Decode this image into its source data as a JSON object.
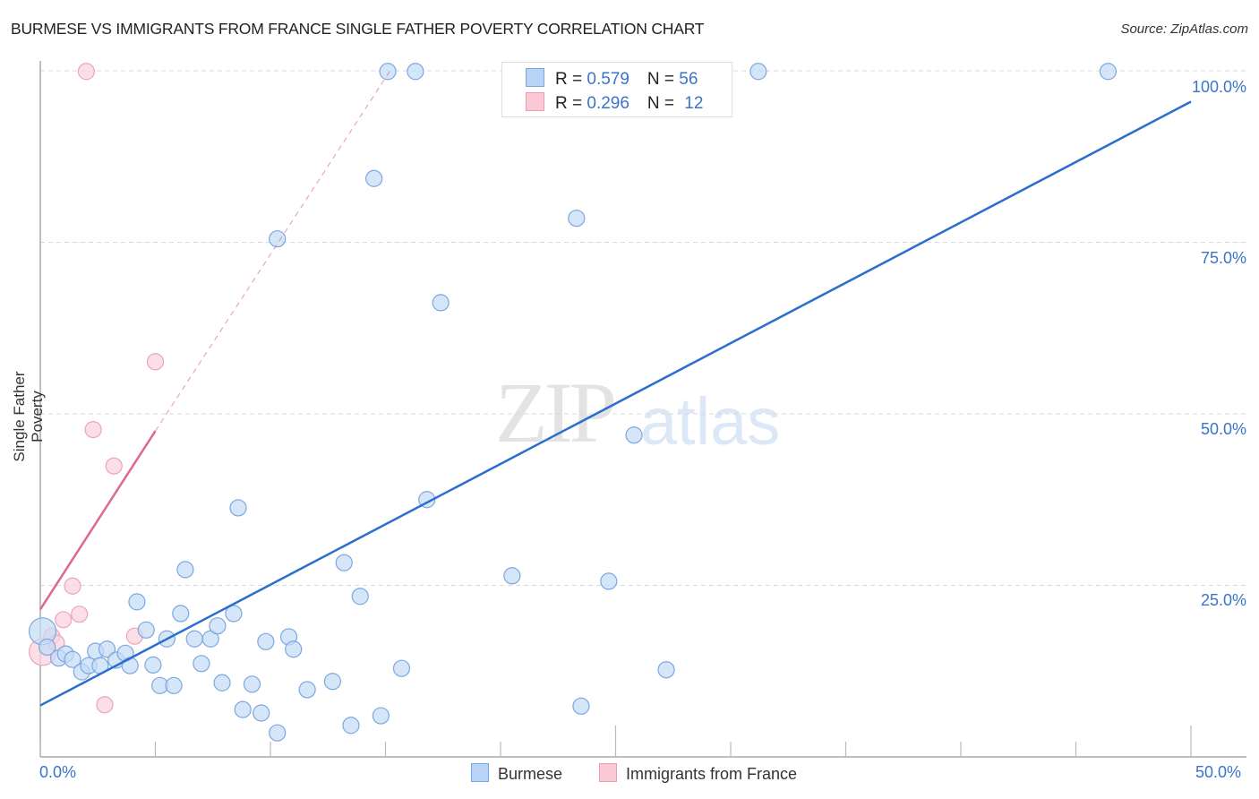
{
  "header": {
    "title": "BURMESE VS IMMIGRANTS FROM FRANCE SINGLE FATHER POVERTY CORRELATION CHART",
    "source": "Source: ZipAtlas.com"
  },
  "watermark": {
    "zip": "ZIP",
    "atlas": "atlas"
  },
  "legend": {
    "rows": [
      {
        "r_label": "R = ",
        "r_value": "0.579",
        "n_label": "N = ",
        "n_value": "56",
        "color": "#b8d3f5",
        "border": "#7aa6e0"
      },
      {
        "r_label": "R = ",
        "r_value": "0.296",
        "n_label": "N = ",
        "n_value": "12",
        "color": "#fbc8d6",
        "border": "#ee9cb4"
      }
    ]
  },
  "bottom_legend": {
    "items": [
      {
        "label": "Burmese",
        "color": "#b8d3f5",
        "border": "#7aa6e0"
      },
      {
        "label": "Immigrants from France",
        "color": "#fbc8d6",
        "border": "#ee9cb4"
      }
    ]
  },
  "axes": {
    "x_min_label": "0.0%",
    "x_max_label": "50.0%",
    "y_tick_labels": [
      "100.0%",
      "75.0%",
      "50.0%",
      "25.0%"
    ],
    "ylabel": "Single Father Poverty"
  },
  "colors": {
    "burmese_fill": "#c5dbf6",
    "burmese_stroke": "#7ba7e0",
    "burmese_line": "#2a6fd0",
    "france_fill": "#fbd3df",
    "france_stroke": "#eea3b9",
    "france_line": "#e0678c",
    "tick_label": "#3b74c9"
  },
  "chart_data": {
    "type": "scatter",
    "title": "BURMESE VS IMMIGRANTS FROM FRANCE SINGLE FATHER POVERTY CORRELATION CHART",
    "xlabel": "",
    "ylabel": "Single Father Poverty",
    "xlim": [
      0,
      50
    ],
    "ylim": [
      2.4,
      102
    ],
    "x_ticks": [
      "0.0%",
      "50.0%"
    ],
    "y_ticks": [
      "25.0%",
      "50.0%",
      "75.0%",
      "100.0%"
    ],
    "grid": "horizontal dashed",
    "legend_position": "top-center and bottom",
    "series": [
      {
        "name": "Burmese",
        "R": 0.579,
        "N": 56,
        "trendline": {
          "x": [
            0,
            50
          ],
          "y": [
            7.5,
            95.5
          ]
        },
        "points": [
          [
            0.1,
            18.3
          ],
          [
            0.8,
            14.4
          ],
          [
            1.1,
            15.0
          ],
          [
            1.4,
            14.2
          ],
          [
            1.8,
            12.4
          ],
          [
            2.1,
            13.3
          ],
          [
            2.4,
            15.4
          ],
          [
            2.6,
            13.3
          ],
          [
            2.9,
            15.7
          ],
          [
            3.3,
            14.1
          ],
          [
            3.7,
            15.1
          ],
          [
            3.9,
            13.3
          ],
          [
            4.2,
            22.6
          ],
          [
            4.6,
            18.5
          ],
          [
            4.9,
            13.4
          ],
          [
            5.2,
            10.4
          ],
          [
            5.5,
            17.2
          ],
          [
            5.8,
            10.4
          ],
          [
            6.1,
            20.9
          ],
          [
            6.3,
            27.3
          ],
          [
            6.7,
            17.2
          ],
          [
            7.0,
            13.6
          ],
          [
            7.4,
            17.2
          ],
          [
            7.7,
            19.1
          ],
          [
            7.9,
            10.8
          ],
          [
            8.4,
            20.9
          ],
          [
            8.6,
            36.3
          ],
          [
            8.8,
            6.9
          ],
          [
            9.2,
            10.6
          ],
          [
            9.6,
            6.4
          ],
          [
            9.8,
            16.8
          ],
          [
            10.3,
            3.5
          ],
          [
            10.3,
            75.5
          ],
          [
            10.8,
            17.5
          ],
          [
            11.0,
            15.7
          ],
          [
            11.6,
            9.8
          ],
          [
            12.7,
            11.0
          ],
          [
            13.2,
            28.3
          ],
          [
            13.5,
            4.6
          ],
          [
            13.9,
            23.4
          ],
          [
            14.5,
            84.3
          ],
          [
            14.8,
            6.0
          ],
          [
            15.1,
            99.9
          ],
          [
            15.7,
            12.9
          ],
          [
            16.3,
            99.9
          ],
          [
            16.8,
            37.5
          ],
          [
            17.4,
            66.2
          ],
          [
            20.5,
            26.4
          ],
          [
            23.3,
            78.5
          ],
          [
            23.5,
            7.4
          ],
          [
            24.7,
            25.6
          ],
          [
            25.8,
            46.9
          ],
          [
            27.2,
            12.7
          ],
          [
            31.2,
            99.9
          ],
          [
            46.4,
            99.9
          ],
          [
            0.3,
            16.0
          ]
        ]
      },
      {
        "name": "Immigrants from France",
        "R": 0.296,
        "N": 12,
        "trendline": {
          "x": [
            0,
            5.0
          ],
          "y": [
            21.5,
            47.5
          ],
          "dashed_extension_to": [
            15.2,
            100
          ]
        },
        "points": [
          [
            0.1,
            15.3
          ],
          [
            0.5,
            17.6
          ],
          [
            0.7,
            16.6
          ],
          [
            1.0,
            20.0
          ],
          [
            1.4,
            24.9
          ],
          [
            1.7,
            20.8
          ],
          [
            2.0,
            99.9
          ],
          [
            2.3,
            47.7
          ],
          [
            2.8,
            7.6
          ],
          [
            3.2,
            42.4
          ],
          [
            4.1,
            17.6
          ],
          [
            5.0,
            57.6
          ]
        ]
      }
    ]
  }
}
